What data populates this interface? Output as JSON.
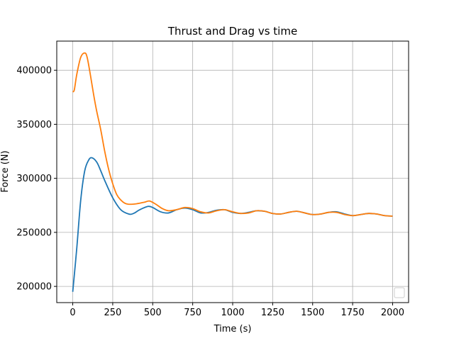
{
  "chart_data": {
    "type": "line",
    "title": "Thrust and Drag vs time",
    "xlabel": "Time (s)",
    "ylabel": "Force (N)",
    "xlim": [
      -100,
      2100
    ],
    "ylim": [
      185000,
      427000
    ],
    "x_ticks": [
      0,
      250,
      500,
      750,
      1000,
      1250,
      1500,
      1750,
      2000
    ],
    "x_tick_labels": [
      "0",
      "250",
      "500",
      "750",
      "1000",
      "1250",
      "1500",
      "1750",
      "2000"
    ],
    "y_ticks": [
      200000,
      250000,
      300000,
      350000,
      400000
    ],
    "y_tick_labels": [
      "200000",
      "250000",
      "300000",
      "350000",
      "400000"
    ],
    "grid": true,
    "legend": {
      "placement": "lower right",
      "entries": []
    },
    "series": [
      {
        "color": "#1f77b4",
        "x": [
          0,
          25,
          50,
          75,
          100,
          120,
          150,
          175,
          200,
          250,
          300,
          350,
          380,
          420,
          470,
          500,
          550,
          600,
          650,
          700,
          750,
          800,
          850,
          900,
          950,
          1000,
          1050,
          1100,
          1150,
          1200,
          1250,
          1300,
          1350,
          1400,
          1450,
          1500,
          1550,
          1600,
          1650,
          1700,
          1750,
          1800,
          1850,
          1900,
          1950,
          2000
        ],
        "y": [
          195000,
          235000,
          280000,
          307000,
          317000,
          319000,
          315000,
          307000,
          298000,
          282000,
          271000,
          267000,
          267500,
          271000,
          274000,
          273000,
          269000,
          268000,
          271000,
          272500,
          271000,
          268000,
          268500,
          270500,
          271000,
          268500,
          267500,
          268500,
          270000,
          269500,
          267500,
          267000,
          268500,
          269500,
          268000,
          266500,
          267000,
          268500,
          269000,
          267000,
          265500,
          266500,
          267500,
          267000,
          265500,
          265000
        ]
      },
      {
        "color": "#ff7f0e",
        "x": [
          0,
          10,
          25,
          50,
          75,
          90,
          110,
          130,
          150,
          175,
          200,
          225,
          250,
          275,
          300,
          325,
          350,
          400,
          450,
          480,
          520,
          560,
          600,
          650,
          700,
          750,
          800,
          850,
          900,
          950,
          1000,
          1050,
          1100,
          1150,
          1200,
          1250,
          1300,
          1350,
          1400,
          1450,
          1500,
          1550,
          1600,
          1650,
          1700,
          1750,
          1800,
          1850,
          1900,
          1950,
          2000
        ],
        "y": [
          380000,
          382000,
          396000,
          412000,
          416000,
          412000,
          396000,
          378000,
          362000,
          345000,
          325000,
          308000,
          295000,
          285000,
          280000,
          277000,
          276000,
          276500,
          278000,
          279000,
          276000,
          272000,
          270000,
          271000,
          273000,
          272000,
          269000,
          268000,
          270000,
          271000,
          269000,
          267500,
          268000,
          270000,
          269500,
          267500,
          267000,
          268500,
          269500,
          268000,
          266500,
          267000,
          268500,
          268500,
          266500,
          265500,
          266500,
          267500,
          267000,
          265500,
          265000
        ]
      }
    ]
  }
}
